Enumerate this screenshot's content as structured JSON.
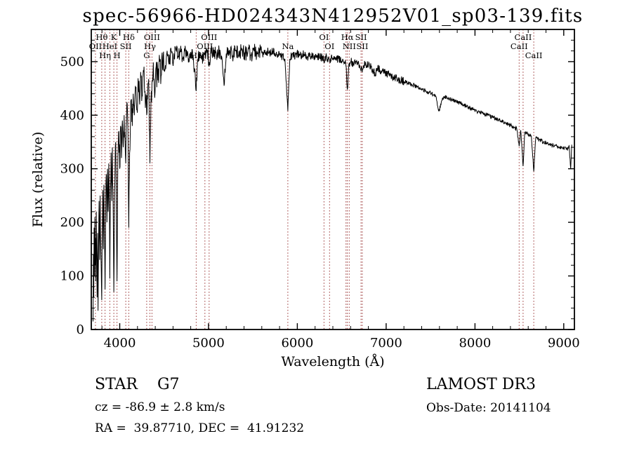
{
  "chart_data": {
    "type": "line",
    "title": "spec-56966-HD024343N412952V01_sp03-139.fits",
    "xlabel": "Wavelength (Å)",
    "ylabel": "Flux (relative)",
    "xlim": [
      3680,
      9120
    ],
    "ylim": [
      0,
      560
    ],
    "xticks": [
      4000,
      5000,
      6000,
      7000,
      8000,
      9000
    ],
    "yticks": [
      0,
      100,
      200,
      300,
      400,
      500
    ],
    "grid": false,
    "legend": "none",
    "line_color": "#000000",
    "marker_line_color": "#993333",
    "spectral_lines": [
      {
        "wl": 3727,
        "label": "OII",
        "row": 1
      },
      {
        "wl": 3798,
        "label": "Hθ",
        "row": 0
      },
      {
        "wl": 3835,
        "label": "Hη",
        "row": 2
      },
      {
        "wl": 3889,
        "label": "HeI",
        "row": 1
      },
      {
        "wl": 3934,
        "label": "K",
        "row": 0
      },
      {
        "wl": 3969,
        "label": "H",
        "row": 2
      },
      {
        "wl": 4068,
        "label": "SII",
        "row": 1
      },
      {
        "wl": 4102,
        "label": "Hδ",
        "row": 0
      },
      {
        "wl": 4304,
        "label": "G",
        "row": 2
      },
      {
        "wl": 4340,
        "label": "Hγ",
        "row": 1
      },
      {
        "wl": 4363,
        "label": "OIII",
        "row": 0
      },
      {
        "wl": 4861,
        "label": "Hβ",
        "row": 2
      },
      {
        "wl": 4959,
        "label": "OIII",
        "row": 1
      },
      {
        "wl": 5007,
        "label": "OIII",
        "row": 0
      },
      {
        "wl": 5893,
        "label": "Na",
        "row": 1
      },
      {
        "wl": 6300,
        "label": "OI",
        "row": 0
      },
      {
        "wl": 6363,
        "label": "OI",
        "row": 1
      },
      {
        "wl": 6548,
        "label": "",
        "row": 1
      },
      {
        "wl": 6563,
        "label": "Hα",
        "row": 0
      },
      {
        "wl": 6584,
        "label": "NII",
        "row": 1
      },
      {
        "wl": 6717,
        "label": "SII",
        "row": 0
      },
      {
        "wl": 6731,
        "label": "SII",
        "row": 1
      },
      {
        "wl": 8498,
        "label": "CaII",
        "row": 1
      },
      {
        "wl": 8542,
        "label": "CaII",
        "row": 0
      },
      {
        "wl": 8662,
        "label": "CaII",
        "row": 2
      }
    ],
    "noise_segments": [
      {
        "from": 3680,
        "to": 4500,
        "amp": 28
      },
      {
        "from": 4500,
        "to": 5600,
        "amp": 14
      },
      {
        "from": 5600,
        "to": 7200,
        "amp": 8
      },
      {
        "from": 7200,
        "to": 9120,
        "amp": 4
      }
    ],
    "spectrum": [
      [
        3700,
        15
      ],
      [
        3704,
        140
      ],
      [
        3708,
        60
      ],
      [
        3712,
        190
      ],
      [
        3716,
        100
      ],
      [
        3720,
        210
      ],
      [
        3724,
        120
      ],
      [
        3727,
        170
      ],
      [
        3731,
        90
      ],
      [
        3736,
        220
      ],
      [
        3741,
        130
      ],
      [
        3746,
        60
      ],
      [
        3751,
        180
      ],
      [
        3756,
        35
      ],
      [
        3762,
        150
      ],
      [
        3768,
        240
      ],
      [
        3774,
        130
      ],
      [
        3780,
        250
      ],
      [
        3786,
        160
      ],
      [
        3792,
        110
      ],
      [
        3798,
        55
      ],
      [
        3804,
        180
      ],
      [
        3810,
        260
      ],
      [
        3816,
        150
      ],
      [
        3822,
        270
      ],
      [
        3828,
        180
      ],
      [
        3835,
        75
      ],
      [
        3842,
        220
      ],
      [
        3849,
        290
      ],
      [
        3856,
        200
      ],
      [
        3863,
        300
      ],
      [
        3870,
        220
      ],
      [
        3877,
        310
      ],
      [
        3883,
        240
      ],
      [
        3889,
        95
      ],
      [
        3896,
        260
      ],
      [
        3903,
        330
      ],
      [
        3910,
        240
      ],
      [
        3917,
        340
      ],
      [
        3924,
        260
      ],
      [
        3934,
        70
      ],
      [
        3941,
        230
      ],
      [
        3948,
        310
      ],
      [
        3955,
        350
      ],
      [
        3962,
        260
      ],
      [
        3969,
        90
      ],
      [
        3976,
        260
      ],
      [
        3983,
        340
      ],
      [
        3990,
        370
      ],
      [
        4000,
        300
      ],
      [
        4010,
        380
      ],
      [
        4020,
        320
      ],
      [
        4030,
        390
      ],
      [
        4040,
        340
      ],
      [
        4050,
        400
      ],
      [
        4060,
        350
      ],
      [
        4068,
        310
      ],
      [
        4076,
        390
      ],
      [
        4085,
        420
      ],
      [
        4094,
        350
      ],
      [
        4102,
        190
      ],
      [
        4112,
        330
      ],
      [
        4122,
        400
      ],
      [
        4132,
        430
      ],
      [
        4142,
        380
      ],
      [
        4152,
        440
      ],
      [
        4165,
        400
      ],
      [
        4180,
        450
      ],
      [
        4195,
        410
      ],
      [
        4210,
        460
      ],
      [
        4225,
        420
      ],
      [
        4240,
        470
      ],
      [
        4255,
        435
      ],
      [
        4270,
        480
      ],
      [
        4285,
        445
      ],
      [
        4304,
        400
      ],
      [
        4318,
        460
      ],
      [
        4330,
        430
      ],
      [
        4340,
        310
      ],
      [
        4352,
        430
      ],
      [
        4363,
        460
      ],
      [
        4375,
        480
      ],
      [
        4390,
        450
      ],
      [
        4410,
        490
      ],
      [
        4430,
        465
      ],
      [
        4450,
        500
      ],
      [
        4470,
        475
      ],
      [
        4490,
        510
      ],
      [
        4510,
        485
      ],
      [
        4530,
        515
      ],
      [
        4555,
        495
      ],
      [
        4580,
        520
      ],
      [
        4605,
        500
      ],
      [
        4630,
        525
      ],
      [
        4655,
        508
      ],
      [
        4680,
        520
      ],
      [
        4710,
        505
      ],
      [
        4740,
        522
      ],
      [
        4770,
        508
      ],
      [
        4800,
        518
      ],
      [
        4830,
        505
      ],
      [
        4861,
        445
      ],
      [
        4880,
        505
      ],
      [
        4900,
        518
      ],
      [
        4925,
        508
      ],
      [
        4959,
        512
      ],
      [
        4985,
        520
      ],
      [
        5007,
        500
      ],
      [
        5030,
        515
      ],
      [
        5060,
        522
      ],
      [
        5090,
        512
      ],
      [
        5120,
        520
      ],
      [
        5150,
        508
      ],
      [
        5175,
        455
      ],
      [
        5200,
        515
      ],
      [
        5235,
        522
      ],
      [
        5270,
        512
      ],
      [
        5305,
        520
      ],
      [
        5340,
        512
      ],
      [
        5375,
        522
      ],
      [
        5410,
        514
      ],
      [
        5445,
        520
      ],
      [
        5480,
        512
      ],
      [
        5515,
        520
      ],
      [
        5550,
        514
      ],
      [
        5585,
        521
      ],
      [
        5620,
        513
      ],
      [
        5655,
        520
      ],
      [
        5690,
        514
      ],
      [
        5725,
        520
      ],
      [
        5760,
        513
      ],
      [
        5795,
        518
      ],
      [
        5830,
        510
      ],
      [
        5860,
        505
      ],
      [
        5893,
        408
      ],
      [
        5915,
        505
      ],
      [
        5945,
        515
      ],
      [
        5975,
        510
      ],
      [
        6005,
        515
      ],
      [
        6040,
        510
      ],
      [
        6075,
        514
      ],
      [
        6110,
        509
      ],
      [
        6145,
        513
      ],
      [
        6180,
        508
      ],
      [
        6215,
        512
      ],
      [
        6250,
        507
      ],
      [
        6285,
        510
      ],
      [
        6300,
        498
      ],
      [
        6320,
        508
      ],
      [
        6355,
        505
      ],
      [
        6363,
        500
      ],
      [
        6390,
        507
      ],
      [
        6425,
        503
      ],
      [
        6460,
        506
      ],
      [
        6495,
        500
      ],
      [
        6530,
        498
      ],
      [
        6548,
        492
      ],
      [
        6563,
        448
      ],
      [
        6580,
        495
      ],
      [
        6600,
        500
      ],
      [
        6640,
        497
      ],
      [
        6680,
        498
      ],
      [
        6700,
        494
      ],
      [
        6717,
        482
      ],
      [
        6724,
        490
      ],
      [
        6731,
        480
      ],
      [
        6745,
        493
      ],
      [
        6770,
        495
      ],
      [
        6800,
        492
      ],
      [
        6830,
        489
      ],
      [
        6860,
        483
      ],
      [
        6880,
        473
      ],
      [
        6900,
        486
      ],
      [
        6930,
        484
      ],
      [
        6960,
        482
      ],
      [
        6990,
        480
      ],
      [
        7020,
        477
      ],
      [
        7050,
        475
      ],
      [
        7080,
        472
      ],
      [
        7110,
        470
      ],
      [
        7140,
        468
      ],
      [
        7170,
        465
      ],
      [
        7200,
        463
      ],
      [
        7230,
        461
      ],
      [
        7260,
        459
      ],
      [
        7290,
        457
      ],
      [
        7320,
        455
      ],
      [
        7350,
        452
      ],
      [
        7380,
        450
      ],
      [
        7410,
        448
      ],
      [
        7440,
        446
      ],
      [
        7470,
        443
      ],
      [
        7500,
        441
      ],
      [
        7530,
        438
      ],
      [
        7560,
        435
      ],
      [
        7593,
        408
      ],
      [
        7610,
        415
      ],
      [
        7630,
        428
      ],
      [
        7660,
        434
      ],
      [
        7690,
        432
      ],
      [
        7720,
        430
      ],
      [
        7750,
        428
      ],
      [
        7780,
        426
      ],
      [
        7810,
        424
      ],
      [
        7840,
        422
      ],
      [
        7870,
        419
      ],
      [
        7900,
        417
      ],
      [
        7930,
        415
      ],
      [
        7960,
        412
      ],
      [
        7990,
        410
      ],
      [
        8020,
        408
      ],
      [
        8050,
        406
      ],
      [
        8080,
        404
      ],
      [
        8110,
        402
      ],
      [
        8140,
        400
      ],
      [
        8170,
        398
      ],
      [
        8200,
        396
      ],
      [
        8230,
        393
      ],
      [
        8260,
        391
      ],
      [
        8290,
        389
      ],
      [
        8320,
        387
      ],
      [
        8350,
        384
      ],
      [
        8380,
        382
      ],
      [
        8410,
        380
      ],
      [
        8440,
        378
      ],
      [
        8470,
        375
      ],
      [
        8498,
        342
      ],
      [
        8515,
        372
      ],
      [
        8542,
        305
      ],
      [
        8560,
        368
      ],
      [
        8585,
        366
      ],
      [
        8610,
        363
      ],
      [
        8635,
        361
      ],
      [
        8662,
        295
      ],
      [
        8685,
        358
      ],
      [
        8715,
        355
      ],
      [
        8745,
        352
      ],
      [
        8775,
        350
      ],
      [
        8805,
        348
      ],
      [
        8835,
        346
      ],
      [
        8865,
        344
      ],
      [
        8895,
        342
      ],
      [
        8925,
        341
      ],
      [
        8955,
        340
      ],
      [
        8985,
        339
      ],
      [
        9015,
        341
      ],
      [
        9040,
        336
      ],
      [
        9060,
        343
      ],
      [
        9078,
        300
      ],
      [
        9090,
        345
      ]
    ]
  },
  "annotations": {
    "class_line": "STAR    G7",
    "survey": "LAMOST DR3",
    "cz_line": "cz = -86.9 ± 2.8 km/s",
    "obsdate_line": "Obs-Date: 20141104",
    "radec_line": "RA =  39.87710, DEC =  41.91232"
  }
}
